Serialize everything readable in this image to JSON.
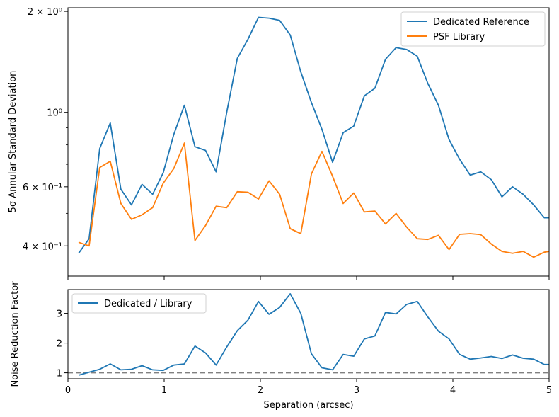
{
  "chart_data": [
    {
      "type": "line",
      "ylabel": "5σ Annular Standard Deviation",
      "xlabel": "",
      "xlim": [
        0,
        5
      ],
      "ylim": [
        0.325,
        2.05
      ],
      "yscale": "log",
      "grid": false,
      "legend_position": "top-right",
      "yticks_major": [
        {
          "value": 0.4,
          "label": "4 × 10⁻¹"
        },
        {
          "value": 0.6,
          "label": "6 × 10⁻¹"
        },
        {
          "value": 1.0,
          "label": "10⁰"
        },
        {
          "value": 2.0,
          "label": "2 × 10⁰"
        }
      ],
      "yticks_minor": [
        0.5,
        0.7,
        0.8,
        0.9,
        0.3
      ],
      "series": [
        {
          "name": "Dedicated Reference",
          "color": "#1f77b4",
          "x": [
            0.11,
            0.22,
            0.33,
            0.44,
            0.55,
            0.66,
            0.77,
            0.88,
            0.99,
            1.1,
            1.21,
            1.32,
            1.43,
            1.54,
            1.65,
            1.76,
            1.87,
            1.98,
            2.09,
            2.2,
            2.31,
            2.42,
            2.53,
            2.64,
            2.75,
            2.86,
            2.97,
            3.08,
            3.19,
            3.3,
            3.41,
            3.52,
            3.63,
            3.74,
            3.85,
            3.96,
            4.07,
            4.18,
            4.29,
            4.4,
            4.51,
            4.62,
            4.73,
            4.84,
            4.95,
            5.0
          ],
          "y": [
            0.38,
            0.42,
            0.78,
            0.93,
            0.59,
            0.53,
            0.61,
            0.57,
            0.66,
            0.86,
            1.05,
            0.79,
            0.77,
            0.665,
            1.0,
            1.45,
            1.65,
            1.92,
            1.91,
            1.88,
            1.7,
            1.32,
            1.07,
            0.89,
            0.71,
            0.87,
            0.91,
            1.12,
            1.18,
            1.44,
            1.56,
            1.54,
            1.47,
            1.22,
            1.05,
            0.83,
            0.725,
            0.65,
            0.665,
            0.63,
            0.56,
            0.6,
            0.57,
            0.53,
            0.485,
            0.485
          ]
        },
        {
          "name": "PSF Library",
          "color": "#ff7f0e",
          "x": [
            0.11,
            0.22,
            0.33,
            0.44,
            0.55,
            0.66,
            0.77,
            0.88,
            0.99,
            1.1,
            1.21,
            1.32,
            1.43,
            1.54,
            1.65,
            1.76,
            1.87,
            1.98,
            2.09,
            2.2,
            2.31,
            2.42,
            2.53,
            2.64,
            2.75,
            2.86,
            2.97,
            3.08,
            3.19,
            3.3,
            3.41,
            3.52,
            3.63,
            3.74,
            3.85,
            3.96,
            4.07,
            4.18,
            4.29,
            4.4,
            4.51,
            4.62,
            4.73,
            4.84,
            4.95,
            5.0
          ],
          "y": [
            0.41,
            0.4,
            0.685,
            0.715,
            0.535,
            0.48,
            0.495,
            0.52,
            0.615,
            0.68,
            0.81,
            0.415,
            0.46,
            0.525,
            0.52,
            0.58,
            0.578,
            0.552,
            0.625,
            0.57,
            0.45,
            0.435,
            0.655,
            0.765,
            0.645,
            0.535,
            0.575,
            0.505,
            0.508,
            0.465,
            0.5,
            0.455,
            0.42,
            0.418,
            0.43,
            0.39,
            0.433,
            0.435,
            0.432,
            0.405,
            0.385,
            0.38,
            0.385,
            0.37,
            0.383,
            0.385
          ]
        }
      ]
    },
    {
      "type": "line",
      "ylabel": "Noise Reduction Factor",
      "xlabel": "Separation (arcsec)",
      "xlim": [
        0,
        5
      ],
      "ylim": [
        0.8,
        3.8
      ],
      "grid": false,
      "legend_position": "top-left",
      "xticks": [
        0,
        1,
        2,
        3,
        4,
        5
      ],
      "xtick_labels": [
        "0",
        "1",
        "2",
        "3",
        "4",
        "5"
      ],
      "yticks": [
        1,
        2,
        3
      ],
      "ytick_labels": [
        "1",
        "2",
        "3"
      ],
      "reference_line": {
        "y": 1.0,
        "color": "#808080",
        "style": "dashed"
      },
      "series": [
        {
          "name": "Dedicated / Library",
          "color": "#1f77b4",
          "x": [
            0.11,
            0.22,
            0.33,
            0.44,
            0.55,
            0.66,
            0.77,
            0.88,
            0.99,
            1.1,
            1.21,
            1.32,
            1.43,
            1.54,
            1.65,
            1.76,
            1.87,
            1.98,
            2.09,
            2.2,
            2.31,
            2.42,
            2.53,
            2.64,
            2.75,
            2.86,
            2.97,
            3.08,
            3.19,
            3.3,
            3.41,
            3.52,
            3.63,
            3.74,
            3.85,
            3.96,
            4.07,
            4.18,
            4.29,
            4.4,
            4.51,
            4.62,
            4.73,
            4.84,
            4.95,
            5.0
          ],
          "y": [
            0.92,
            1.02,
            1.12,
            1.3,
            1.1,
            1.12,
            1.24,
            1.1,
            1.08,
            1.26,
            1.3,
            1.9,
            1.67,
            1.26,
            1.87,
            2.42,
            2.77,
            3.4,
            2.97,
            3.2,
            3.66,
            3.0,
            1.64,
            1.17,
            1.1,
            1.62,
            1.56,
            2.14,
            2.24,
            3.03,
            2.98,
            3.3,
            3.4,
            2.88,
            2.4,
            2.14,
            1.62,
            1.46,
            1.5,
            1.55,
            1.48,
            1.6,
            1.49,
            1.46,
            1.28,
            1.28
          ]
        }
      ]
    }
  ]
}
